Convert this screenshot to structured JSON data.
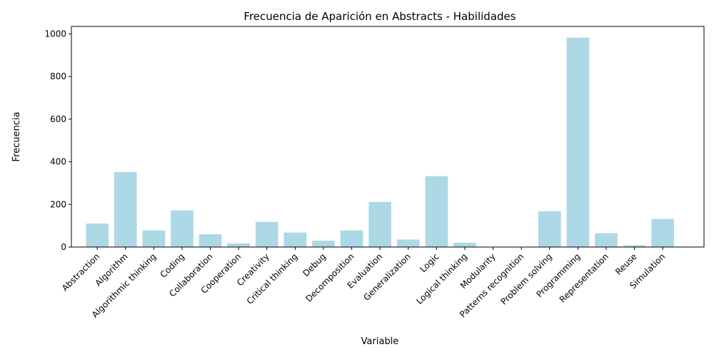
{
  "chart_data": {
    "type": "bar",
    "title": "Frecuencia de Aparición en Abstracts - Habilidades",
    "xlabel": "Variable",
    "ylabel": "Frecuencia",
    "ylim": [
      0,
      1035
    ],
    "yticks": [
      0,
      200,
      400,
      600,
      800,
      1000
    ],
    "grid": false,
    "bar_color": "#add8e6",
    "categories": [
      "Abstraction",
      "Algorithm",
      "Algorithmic thinking",
      "Coding",
      "Collaboration",
      "Cooperation",
      "Creativity",
      "Critical thinking",
      "Debug",
      "Decomposition",
      "Evaluation",
      "Generalization",
      "Logic",
      "Logical thinking",
      "Modularity",
      "Patterns recognition",
      "Problem solving",
      "Programming",
      "Representation",
      "Reuse",
      "Simulation"
    ],
    "values": [
      110,
      352,
      78,
      172,
      60,
      17,
      118,
      68,
      30,
      78,
      212,
      35,
      333,
      20,
      0,
      0,
      168,
      982,
      65,
      8,
      132
    ]
  }
}
